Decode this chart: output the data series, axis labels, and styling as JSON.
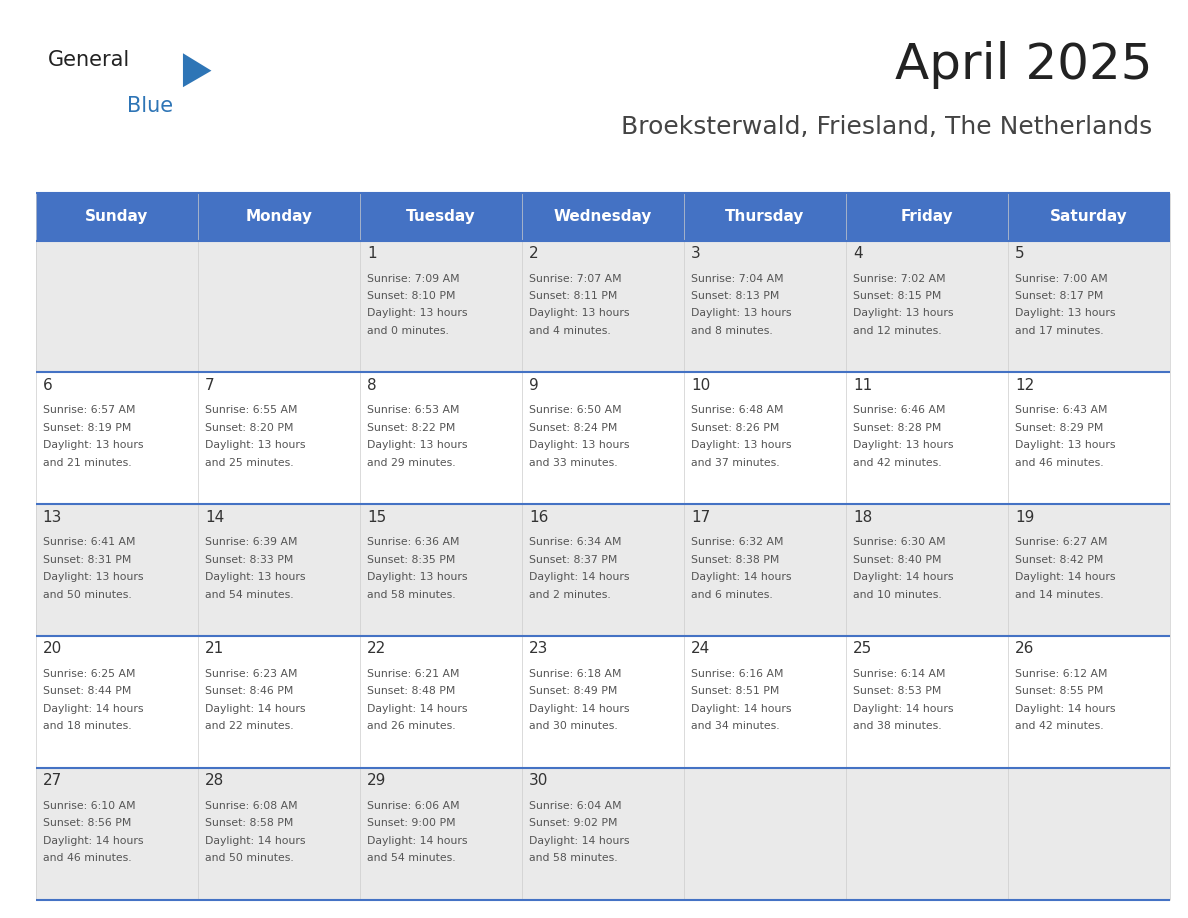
{
  "title": "April 2025",
  "subtitle": "Broeksterwald, Friesland, The Netherlands",
  "days_of_week": [
    "Sunday",
    "Monday",
    "Tuesday",
    "Wednesday",
    "Thursday",
    "Friday",
    "Saturday"
  ],
  "header_bg": "#4472C4",
  "header_text": "#FFFFFF",
  "row_bg_even": "#EAEAEA",
  "row_bg_odd": "#FFFFFF",
  "cell_text_color": "#333333",
  "day_num_color": "#333333",
  "border_color": "#4472C4",
  "logo_general_color": "#222222",
  "logo_blue_color": "#2E75B6",
  "title_color": "#222222",
  "subtitle_color": "#444444",
  "weeks": [
    [
      {
        "day": null,
        "info": null
      },
      {
        "day": null,
        "info": null
      },
      {
        "day": 1,
        "info": "Sunrise: 7:09 AM\nSunset: 8:10 PM\nDaylight: 13 hours\nand 0 minutes."
      },
      {
        "day": 2,
        "info": "Sunrise: 7:07 AM\nSunset: 8:11 PM\nDaylight: 13 hours\nand 4 minutes."
      },
      {
        "day": 3,
        "info": "Sunrise: 7:04 AM\nSunset: 8:13 PM\nDaylight: 13 hours\nand 8 minutes."
      },
      {
        "day": 4,
        "info": "Sunrise: 7:02 AM\nSunset: 8:15 PM\nDaylight: 13 hours\nand 12 minutes."
      },
      {
        "day": 5,
        "info": "Sunrise: 7:00 AM\nSunset: 8:17 PM\nDaylight: 13 hours\nand 17 minutes."
      }
    ],
    [
      {
        "day": 6,
        "info": "Sunrise: 6:57 AM\nSunset: 8:19 PM\nDaylight: 13 hours\nand 21 minutes."
      },
      {
        "day": 7,
        "info": "Sunrise: 6:55 AM\nSunset: 8:20 PM\nDaylight: 13 hours\nand 25 minutes."
      },
      {
        "day": 8,
        "info": "Sunrise: 6:53 AM\nSunset: 8:22 PM\nDaylight: 13 hours\nand 29 minutes."
      },
      {
        "day": 9,
        "info": "Sunrise: 6:50 AM\nSunset: 8:24 PM\nDaylight: 13 hours\nand 33 minutes."
      },
      {
        "day": 10,
        "info": "Sunrise: 6:48 AM\nSunset: 8:26 PM\nDaylight: 13 hours\nand 37 minutes."
      },
      {
        "day": 11,
        "info": "Sunrise: 6:46 AM\nSunset: 8:28 PM\nDaylight: 13 hours\nand 42 minutes."
      },
      {
        "day": 12,
        "info": "Sunrise: 6:43 AM\nSunset: 8:29 PM\nDaylight: 13 hours\nand 46 minutes."
      }
    ],
    [
      {
        "day": 13,
        "info": "Sunrise: 6:41 AM\nSunset: 8:31 PM\nDaylight: 13 hours\nand 50 minutes."
      },
      {
        "day": 14,
        "info": "Sunrise: 6:39 AM\nSunset: 8:33 PM\nDaylight: 13 hours\nand 54 minutes."
      },
      {
        "day": 15,
        "info": "Sunrise: 6:36 AM\nSunset: 8:35 PM\nDaylight: 13 hours\nand 58 minutes."
      },
      {
        "day": 16,
        "info": "Sunrise: 6:34 AM\nSunset: 8:37 PM\nDaylight: 14 hours\nand 2 minutes."
      },
      {
        "day": 17,
        "info": "Sunrise: 6:32 AM\nSunset: 8:38 PM\nDaylight: 14 hours\nand 6 minutes."
      },
      {
        "day": 18,
        "info": "Sunrise: 6:30 AM\nSunset: 8:40 PM\nDaylight: 14 hours\nand 10 minutes."
      },
      {
        "day": 19,
        "info": "Sunrise: 6:27 AM\nSunset: 8:42 PM\nDaylight: 14 hours\nand 14 minutes."
      }
    ],
    [
      {
        "day": 20,
        "info": "Sunrise: 6:25 AM\nSunset: 8:44 PM\nDaylight: 14 hours\nand 18 minutes."
      },
      {
        "day": 21,
        "info": "Sunrise: 6:23 AM\nSunset: 8:46 PM\nDaylight: 14 hours\nand 22 minutes."
      },
      {
        "day": 22,
        "info": "Sunrise: 6:21 AM\nSunset: 8:48 PM\nDaylight: 14 hours\nand 26 minutes."
      },
      {
        "day": 23,
        "info": "Sunrise: 6:18 AM\nSunset: 8:49 PM\nDaylight: 14 hours\nand 30 minutes."
      },
      {
        "day": 24,
        "info": "Sunrise: 6:16 AM\nSunset: 8:51 PM\nDaylight: 14 hours\nand 34 minutes."
      },
      {
        "day": 25,
        "info": "Sunrise: 6:14 AM\nSunset: 8:53 PM\nDaylight: 14 hours\nand 38 minutes."
      },
      {
        "day": 26,
        "info": "Sunrise: 6:12 AM\nSunset: 8:55 PM\nDaylight: 14 hours\nand 42 minutes."
      }
    ],
    [
      {
        "day": 27,
        "info": "Sunrise: 6:10 AM\nSunset: 8:56 PM\nDaylight: 14 hours\nand 46 minutes."
      },
      {
        "day": 28,
        "info": "Sunrise: 6:08 AM\nSunset: 8:58 PM\nDaylight: 14 hours\nand 50 minutes."
      },
      {
        "day": 29,
        "info": "Sunrise: 6:06 AM\nSunset: 9:00 PM\nDaylight: 14 hours\nand 54 minutes."
      },
      {
        "day": 30,
        "info": "Sunrise: 6:04 AM\nSunset: 9:02 PM\nDaylight: 14 hours\nand 58 minutes."
      },
      {
        "day": null,
        "info": null
      },
      {
        "day": null,
        "info": null
      },
      {
        "day": null,
        "info": null
      }
    ]
  ]
}
